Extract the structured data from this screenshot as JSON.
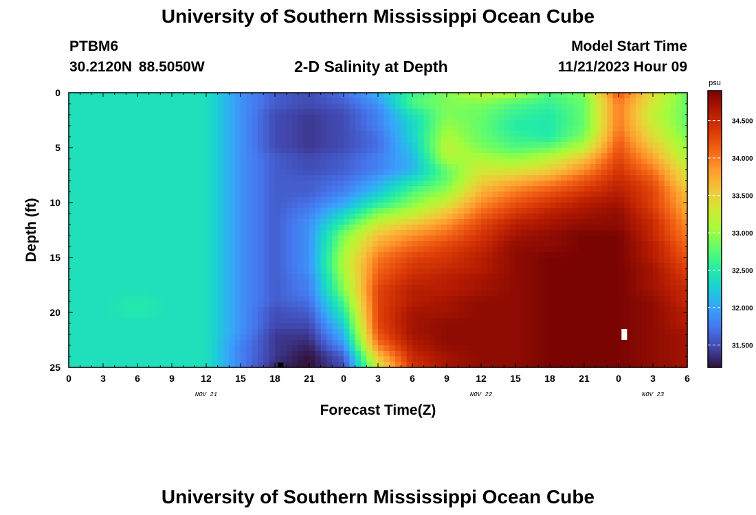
{
  "header": {
    "title": "University of Southern Mississippi Ocean Cube",
    "station_id": "PTBM6",
    "coords": "30.2120N  88.5050W",
    "chart_title": "2-D Salinity at Depth",
    "model_start_label": "Model Start Time",
    "model_start_value": "11/21/2023 Hour 09"
  },
  "footer": {
    "title": "University of Southern Mississippi Ocean Cube"
  },
  "colors": {
    "colormap": [
      "#30123b",
      "#4145ab",
      "#4675ed",
      "#39a2fc",
      "#1bcfd4",
      "#24eca6",
      "#61fc6c",
      "#a4fc3b",
      "#d1e834",
      "#f3c63a",
      "#fe9b2d",
      "#f36315",
      "#d93806",
      "#b11901",
      "#7a0402"
    ]
  },
  "chart_data": {
    "type": "heatmap",
    "title": "2-D Salinity at Depth",
    "xlabel": "Forecast Time(Z)",
    "ylabel": "Depth (ft)",
    "x_ticks": [
      "0",
      "3",
      "6",
      "9",
      "12",
      "15",
      "18",
      "21",
      "0",
      "3",
      "6",
      "9",
      "12",
      "15",
      "18",
      "21",
      "0",
      "3",
      "6"
    ],
    "x_range_hours": [
      0,
      54
    ],
    "date_labels": [
      {
        "text": "NOV 21",
        "hour": 12
      },
      {
        "text": "NOV 22",
        "hour": 36
      },
      {
        "text": "NOV 23",
        "hour": 51
      }
    ],
    "y_ticks": [
      "0",
      "5",
      "10",
      "15",
      "20",
      "25"
    ],
    "ylim": [
      0,
      25
    ],
    "y_inverted": true,
    "colorbar": {
      "unit": "psu",
      "range": [
        31.2,
        34.9
      ],
      "ticks": [
        "31.500",
        "32.000",
        "32.500",
        "33.000",
        "33.500",
        "34.000",
        "34.500"
      ]
    },
    "grid": {
      "x_hours": [
        0,
        3,
        6,
        9,
        12,
        15,
        18,
        21,
        24,
        27,
        30,
        33,
        36,
        39,
        42,
        45,
        48,
        51,
        54
      ],
      "depths_ft": [
        0,
        1,
        2,
        3,
        4,
        5,
        6,
        7,
        8,
        9,
        10,
        11,
        12,
        13,
        14,
        15,
        16,
        17,
        18,
        19,
        20,
        21,
        22,
        23,
        24,
        25
      ]
    },
    "values_psu": [
      [
        32.4,
        32.4,
        32.4,
        32.4,
        32.4,
        31.9,
        31.6,
        31.5,
        31.7,
        32.1,
        32.6,
        32.9,
        33.2,
        33.1,
        32.7,
        32.9,
        34.2,
        33.4,
        32.8
      ],
      [
        32.4,
        32.4,
        32.4,
        32.4,
        32.4,
        31.9,
        31.6,
        31.5,
        31.6,
        31.9,
        32.7,
        32.9,
        32.9,
        32.7,
        32.6,
        32.8,
        34.0,
        33.3,
        32.8
      ],
      [
        32.4,
        32.4,
        32.4,
        32.4,
        32.4,
        31.9,
        31.5,
        31.4,
        31.5,
        31.8,
        32.4,
        32.9,
        32.8,
        32.6,
        32.5,
        32.8,
        34.0,
        33.2,
        32.8
      ],
      [
        32.4,
        32.4,
        32.4,
        32.4,
        32.4,
        31.9,
        31.5,
        31.4,
        31.5,
        31.8,
        32.3,
        33.0,
        32.8,
        32.5,
        32.5,
        32.8,
        34.0,
        33.3,
        32.8
      ],
      [
        32.4,
        32.4,
        32.4,
        32.4,
        32.4,
        31.9,
        31.5,
        31.4,
        31.5,
        31.7,
        32.3,
        33.1,
        32.8,
        32.6,
        32.5,
        32.9,
        34.1,
        33.4,
        32.9
      ],
      [
        32.4,
        32.4,
        32.4,
        32.4,
        32.4,
        31.9,
        31.5,
        31.4,
        31.5,
        31.7,
        32.2,
        33.2,
        32.9,
        32.7,
        32.8,
        33.2,
        34.2,
        33.6,
        33.0
      ],
      [
        32.4,
        32.4,
        32.4,
        32.4,
        32.4,
        31.9,
        31.6,
        31.5,
        31.6,
        31.8,
        32.1,
        33.1,
        33.1,
        33.0,
        33.2,
        33.6,
        34.3,
        33.8,
        33.1
      ],
      [
        32.4,
        32.4,
        32.4,
        32.4,
        32.4,
        31.9,
        31.6,
        31.5,
        31.6,
        31.8,
        32.1,
        32.8,
        33.3,
        33.3,
        33.5,
        33.9,
        34.4,
        34.0,
        33.3
      ],
      [
        32.4,
        32.4,
        32.4,
        32.4,
        32.4,
        31.9,
        31.6,
        31.6,
        31.7,
        32.0,
        32.4,
        32.8,
        33.5,
        33.7,
        33.9,
        34.2,
        34.5,
        34.2,
        33.4
      ],
      [
        32.4,
        32.4,
        32.4,
        32.4,
        32.4,
        31.9,
        31.6,
        31.6,
        31.8,
        32.2,
        32.7,
        33.0,
        33.7,
        34.0,
        34.2,
        34.4,
        34.6,
        34.3,
        33.6
      ],
      [
        32.4,
        32.4,
        32.4,
        32.4,
        32.4,
        31.9,
        31.6,
        31.7,
        32.0,
        32.5,
        32.9,
        33.3,
        33.9,
        34.2,
        34.4,
        34.6,
        34.7,
        34.3,
        33.7
      ],
      [
        32.4,
        32.4,
        32.4,
        32.4,
        32.4,
        31.9,
        31.6,
        31.8,
        32.3,
        32.9,
        33.2,
        33.6,
        34.1,
        34.4,
        34.6,
        34.7,
        34.8,
        34.4,
        33.8
      ],
      [
        32.4,
        32.4,
        32.4,
        32.4,
        32.4,
        31.9,
        31.6,
        31.9,
        32.6,
        33.3,
        33.6,
        33.9,
        34.3,
        34.6,
        34.7,
        34.8,
        34.8,
        34.5,
        33.9
      ],
      [
        32.4,
        32.4,
        32.4,
        32.4,
        32.4,
        31.9,
        31.6,
        31.9,
        32.9,
        33.6,
        33.9,
        34.1,
        34.4,
        34.7,
        34.8,
        34.9,
        34.9,
        34.5,
        34.0
      ],
      [
        32.4,
        32.4,
        32.4,
        32.4,
        32.4,
        31.9,
        31.6,
        31.9,
        33.0,
        33.8,
        34.1,
        34.3,
        34.5,
        34.8,
        34.8,
        34.9,
        34.9,
        34.6,
        34.1
      ],
      [
        32.4,
        32.4,
        32.4,
        32.4,
        32.4,
        31.9,
        31.6,
        31.9,
        33.1,
        34.0,
        34.3,
        34.4,
        34.6,
        34.8,
        34.9,
        34.9,
        34.9,
        34.6,
        34.2
      ],
      [
        32.4,
        32.4,
        32.4,
        32.4,
        32.4,
        31.9,
        31.6,
        31.9,
        33.1,
        34.1,
        34.4,
        34.5,
        34.6,
        34.8,
        34.9,
        34.9,
        34.9,
        34.7,
        34.3
      ],
      [
        32.4,
        32.4,
        32.4,
        32.4,
        32.4,
        31.9,
        31.6,
        31.8,
        33.0,
        34.2,
        34.5,
        34.6,
        34.7,
        34.8,
        34.9,
        34.9,
        34.9,
        34.7,
        34.4
      ],
      [
        32.4,
        32.4,
        32.4,
        32.4,
        32.4,
        31.9,
        31.6,
        31.8,
        32.9,
        34.3,
        34.6,
        34.6,
        34.7,
        34.8,
        34.9,
        34.9,
        34.9,
        34.7,
        34.5
      ],
      [
        32.4,
        32.4,
        32.5,
        32.4,
        32.4,
        31.9,
        31.6,
        31.7,
        32.7,
        34.3,
        34.6,
        34.7,
        34.8,
        34.8,
        34.9,
        34.9,
        34.9,
        34.8,
        34.5
      ],
      [
        32.4,
        32.4,
        32.5,
        32.4,
        32.4,
        31.9,
        31.5,
        31.6,
        32.5,
        34.3,
        34.7,
        34.7,
        34.8,
        34.8,
        34.9,
        34.9,
        34.9,
        34.8,
        34.6
      ],
      [
        32.4,
        32.4,
        32.4,
        32.4,
        32.4,
        31.9,
        31.5,
        31.5,
        32.3,
        34.3,
        34.7,
        34.8,
        34.8,
        34.8,
        34.9,
        34.9,
        34.9,
        34.8,
        34.6
      ],
      [
        32.4,
        32.4,
        32.4,
        32.4,
        32.4,
        31.9,
        31.4,
        31.4,
        32.1,
        34.2,
        34.7,
        34.8,
        34.8,
        34.8,
        34.9,
        34.9,
        34.9,
        34.8,
        34.7
      ],
      [
        32.4,
        32.4,
        32.4,
        32.4,
        32.4,
        31.8,
        31.4,
        31.3,
        31.9,
        34.0,
        34.6,
        34.8,
        34.8,
        34.8,
        34.9,
        34.9,
        34.9,
        34.8,
        34.7
      ],
      [
        32.4,
        32.4,
        32.4,
        32.4,
        32.4,
        31.8,
        31.4,
        31.2,
        31.6,
        33.6,
        34.5,
        34.7,
        34.8,
        34.8,
        34.9,
        34.9,
        34.9,
        34.8,
        34.7
      ],
      [
        32.4,
        32.4,
        32.4,
        32.4,
        32.4,
        31.8,
        31.3,
        31.2,
        31.5,
        33.3,
        34.4,
        34.7,
        34.8,
        34.8,
        34.9,
        34.9,
        34.9,
        34.8,
        34.7
      ]
    ],
    "missing_points": [
      {
        "hour": 48.5,
        "depth_ft": 22
      }
    ],
    "minimum_marker": {
      "hour": 18.5,
      "depth_ft": 25
    },
    "grid_lines": false,
    "legend": "colorbar right"
  }
}
